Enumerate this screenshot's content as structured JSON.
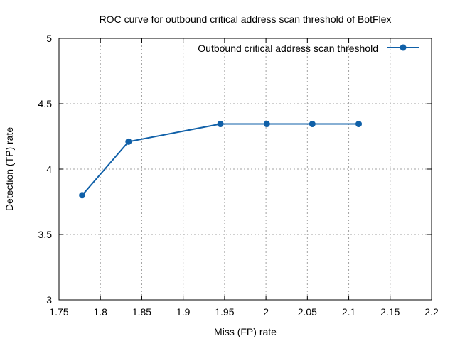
{
  "chart_data": {
    "type": "line",
    "title": "ROC curve for outbound critical address scan threshold of BotFlex",
    "xlabel": "Miss (FP) rate",
    "ylabel": "Detection (TP) rate",
    "xlim": [
      1.75,
      2.2
    ],
    "ylim": [
      3,
      5
    ],
    "x_ticks": [
      "1.75",
      "1.8",
      "1.85",
      "1.9",
      "1.95",
      "2",
      "2.05",
      "2.1",
      "2.15",
      "2.2"
    ],
    "y_ticks": [
      "3",
      "3.5",
      "4",
      "4.5",
      "5"
    ],
    "grid": true,
    "legend_position": "top-right",
    "series": [
      {
        "name": "Outbound critical address scan threshold",
        "color": "#1060a8",
        "marker": "circle",
        "x": [
          1.778,
          1.834,
          1.945,
          2.001,
          2.056,
          2.112
        ],
        "y": [
          3.8,
          4.21,
          4.345,
          4.345,
          4.345,
          4.345
        ]
      }
    ]
  }
}
